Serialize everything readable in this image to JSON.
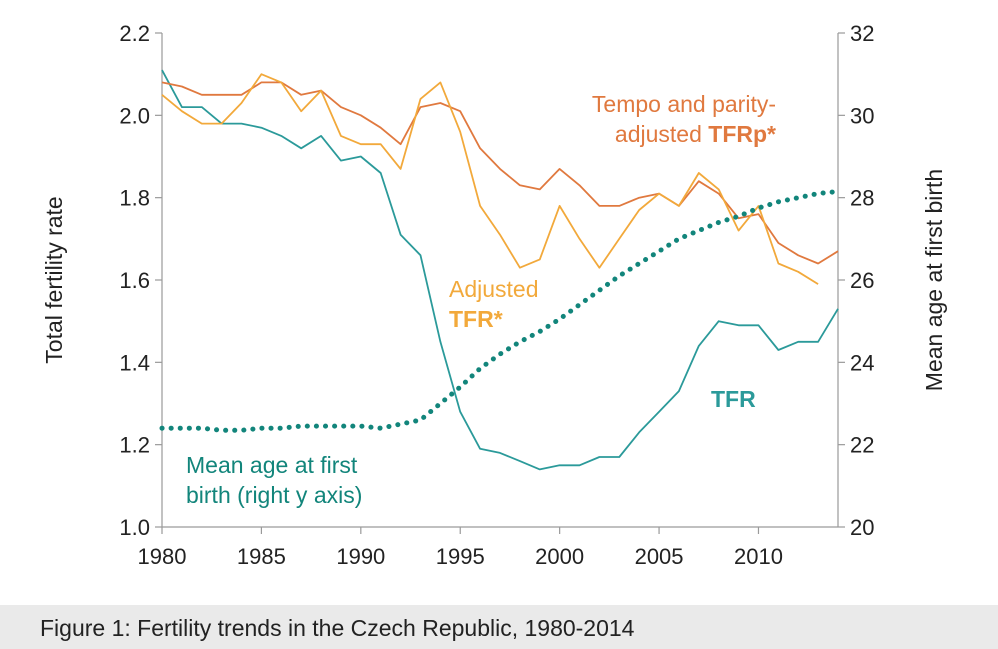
{
  "chart_data": {
    "type": "line",
    "title": "",
    "xlabel": "",
    "ylabel": "Total fertility rate",
    "y2label": "Mean age at first birth",
    "xlim": [
      1980,
      2014
    ],
    "ylim": [
      1.0,
      2.2
    ],
    "y2lim": [
      20,
      32
    ],
    "x_ticks": [
      "1980",
      "1985",
      "1990",
      "1995",
      "2000",
      "2005",
      "2010"
    ],
    "y_ticks": [
      "1.0",
      "1.2",
      "1.4",
      "1.6",
      "1.8",
      "2.0",
      "2.2"
    ],
    "y2_ticks": [
      "20",
      "22",
      "24",
      "26",
      "28",
      "30",
      "32"
    ],
    "grid": false,
    "series": [
      {
        "name": "TFR",
        "axis": "left",
        "color": "#2b9a9a",
        "style": "solid",
        "x": [
          1980,
          1981,
          1982,
          1983,
          1984,
          1985,
          1986,
          1987,
          1988,
          1989,
          1990,
          1991,
          1992,
          1993,
          1994,
          1995,
          1996,
          1997,
          1998,
          1999,
          2000,
          2001,
          2002,
          2003,
          2004,
          2005,
          2006,
          2007,
          2008,
          2009,
          2010,
          2011,
          2012,
          2013,
          2014
        ],
        "values": [
          2.11,
          2.02,
          2.02,
          1.98,
          1.98,
          1.97,
          1.95,
          1.92,
          1.95,
          1.89,
          1.9,
          1.86,
          1.71,
          1.66,
          1.45,
          1.28,
          1.19,
          1.18,
          1.16,
          1.14,
          1.15,
          1.15,
          1.17,
          1.17,
          1.23,
          1.28,
          1.33,
          1.44,
          1.5,
          1.49,
          1.49,
          1.43,
          1.45,
          1.45,
          1.53
        ]
      },
      {
        "name": "TFRp*",
        "axis": "left",
        "color": "#e0793f",
        "style": "solid",
        "x": [
          1980,
          1981,
          1982,
          1983,
          1984,
          1985,
          1986,
          1987,
          1988,
          1989,
          1990,
          1991,
          1992,
          1993,
          1994,
          1995,
          1996,
          1997,
          1998,
          1999,
          2000,
          2001,
          2002,
          2003,
          2004,
          2005,
          2006,
          2007,
          2008,
          2009,
          2010,
          2011,
          2012,
          2013,
          2014
        ],
        "values": [
          2.08,
          2.07,
          2.05,
          2.05,
          2.05,
          2.08,
          2.08,
          2.05,
          2.06,
          2.02,
          2.0,
          1.97,
          1.93,
          2.02,
          2.03,
          2.01,
          1.92,
          1.87,
          1.83,
          1.82,
          1.87,
          1.83,
          1.78,
          1.78,
          1.8,
          1.81,
          1.78,
          1.84,
          1.81,
          1.75,
          1.76,
          1.69,
          1.66,
          1.64,
          1.67
        ]
      },
      {
        "name": "Adjusted TFR*",
        "axis": "left",
        "color": "#f2a93b",
        "style": "solid",
        "x": [
          1980,
          1981,
          1982,
          1983,
          1984,
          1985,
          1986,
          1987,
          1988,
          1989,
          1990,
          1991,
          1992,
          1993,
          1994,
          1995,
          1996,
          1997,
          1998,
          1999,
          2000,
          2001,
          2002,
          2003,
          2004,
          2005,
          2006,
          2007,
          2008,
          2009,
          2010,
          2011,
          2012,
          2013
        ],
        "values": [
          2.05,
          2.01,
          1.98,
          1.98,
          2.03,
          2.1,
          2.08,
          2.01,
          2.06,
          1.95,
          1.93,
          1.93,
          1.87,
          2.04,
          2.08,
          1.96,
          1.78,
          1.71,
          1.63,
          1.65,
          1.78,
          1.7,
          1.63,
          1.7,
          1.77,
          1.81,
          1.78,
          1.86,
          1.82,
          1.72,
          1.78,
          1.64,
          1.62,
          1.59
        ]
      },
      {
        "name": "Mean age at first birth (right y axis)",
        "axis": "right",
        "color": "#12857b",
        "style": "dotted",
        "x": [
          1980,
          1981,
          1982,
          1983,
          1984,
          1985,
          1986,
          1987,
          1988,
          1989,
          1990,
          1991,
          1992,
          1993,
          1994,
          1995,
          1996,
          1997,
          1998,
          1999,
          2000,
          2001,
          2002,
          2003,
          2004,
          2005,
          2006,
          2007,
          2008,
          2009,
          2010,
          2011,
          2012,
          2013,
          2014
        ],
        "values": [
          22.4,
          22.4,
          22.4,
          22.35,
          22.35,
          22.4,
          22.4,
          22.45,
          22.45,
          22.45,
          22.45,
          22.4,
          22.5,
          22.6,
          23.0,
          23.4,
          23.85,
          24.2,
          24.5,
          24.75,
          25.05,
          25.4,
          25.75,
          26.1,
          26.4,
          26.7,
          27.0,
          27.2,
          27.4,
          27.55,
          27.75,
          27.9,
          28.0,
          28.1,
          28.15
        ]
      }
    ],
    "annotations": [
      {
        "key": "tfrp",
        "lines": [
          [
            "Tempo and parity-"
          ],
          [
            "adjusted ",
            "TFRp*"
          ]
        ],
        "color": "#e0793f"
      },
      {
        "key": "adj",
        "lines": [
          [
            "Adjusted"
          ],
          [
            "TFR*"
          ]
        ],
        "color": "#f2a93b"
      },
      {
        "key": "tfr",
        "lines": [
          [
            "TFR"
          ]
        ],
        "color": "#2b9a9a"
      },
      {
        "key": "mab",
        "lines": [
          [
            "Mean age at first"
          ],
          [
            "birth (right y axis)"
          ]
        ],
        "color": "#12857b"
      }
    ]
  },
  "caption": "Figure 1: Fertility trends in the Czech Republic, 1980-2014"
}
